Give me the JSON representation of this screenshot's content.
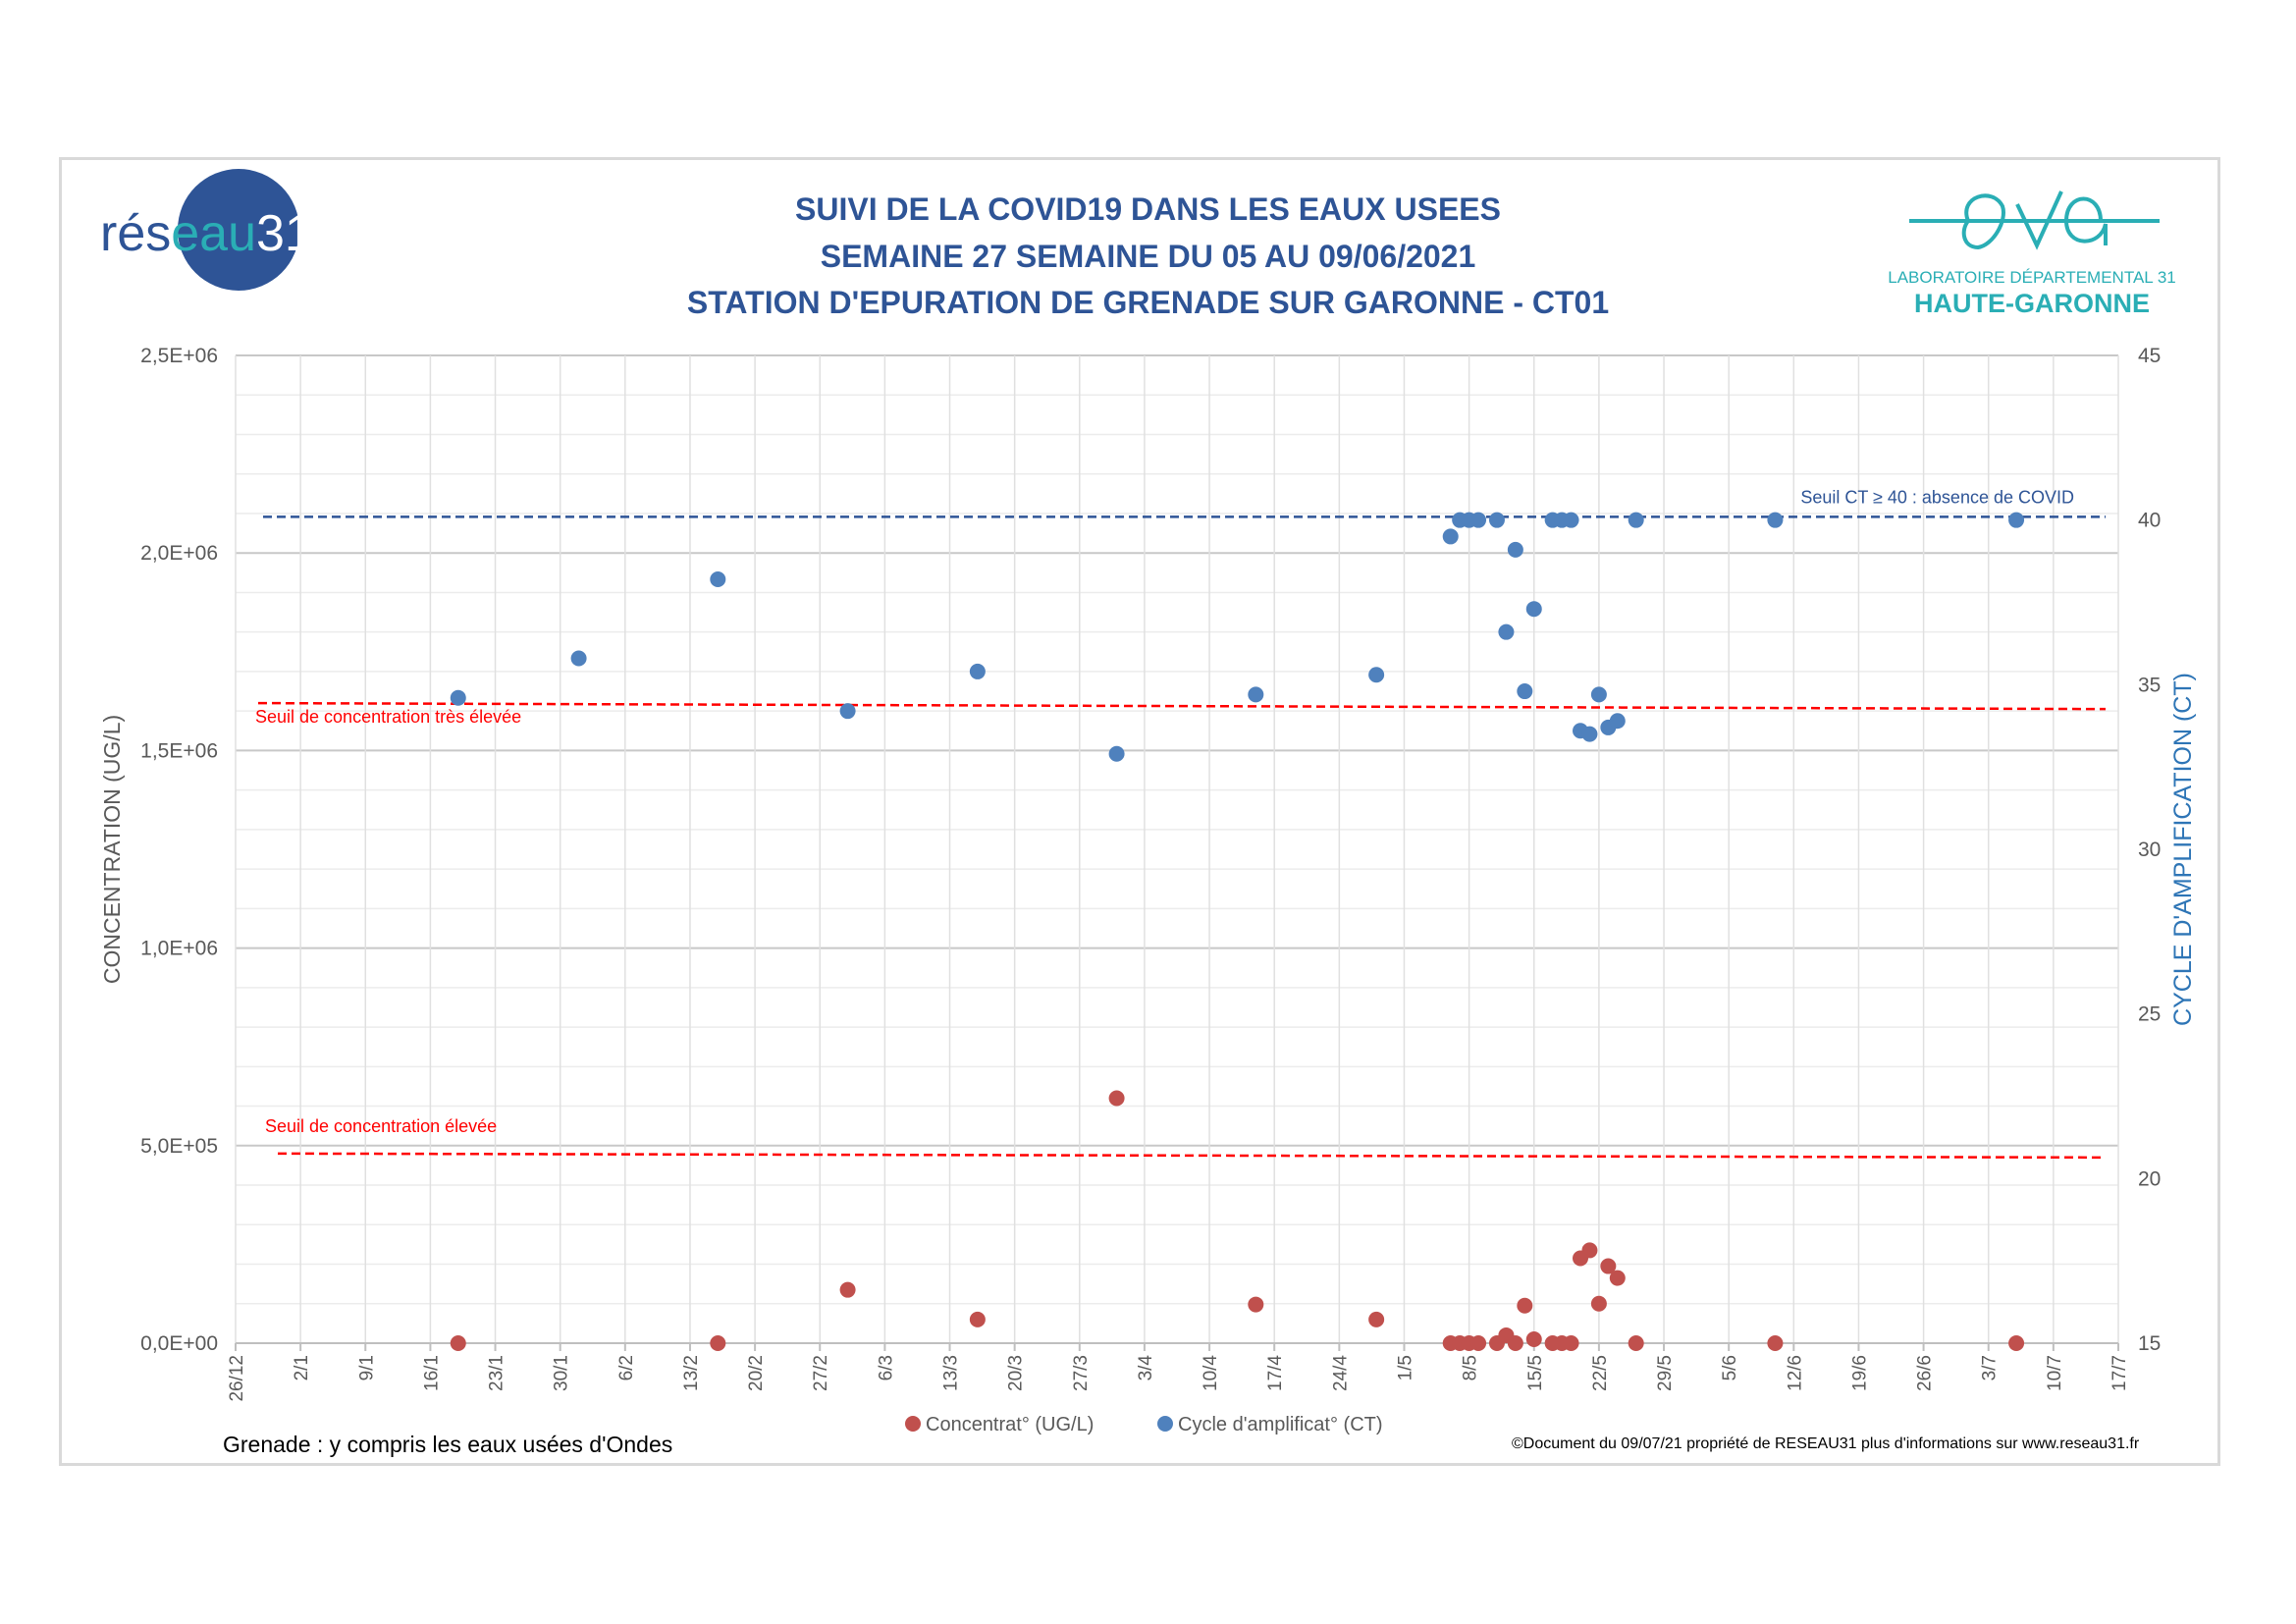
{
  "header": {
    "title_lines": [
      "SUIVI DE LA COVID19 DANS LES EAUX USEES",
      "SEMAINE 27 SEMAINE DU 05 AU 09/06/2021",
      "STATION D'EPURATION DE GRENADE SUR GARONNE - CT01"
    ],
    "logo_left": {
      "text_main": "rés",
      "text_accent": "eau",
      "text_number": "31"
    },
    "logo_right": {
      "line1": "LABORATOIRE DÉPARTEMENTAL 31",
      "line2": "HAUTE-GARONNE"
    }
  },
  "footer": {
    "note": "Grenade : y compris les eaux usées d'Ondes",
    "copyright": "©Document du 09/07/21 propriété de RESEAU31 plus d'informations sur www.reseau31.fr"
  },
  "colors": {
    "title": "#2e5496",
    "concentration": "#c0504d",
    "ct": "#4f81bd",
    "threshold_red": "#ff0000",
    "threshold_blue": "#2e5496",
    "grid": "#d9d9d9",
    "logo_dark": "#2e5496",
    "logo_teal": "#2aaeb5"
  },
  "chart_data": {
    "type": "scatter",
    "x_axis": {
      "min": "2020-12-26",
      "max": "2021-07-17",
      "tick_labels": [
        "26/12",
        "2/1",
        "9/1",
        "16/1",
        "23/1",
        "30/1",
        "6/2",
        "13/2",
        "20/2",
        "27/2",
        "6/3",
        "13/3",
        "20/3",
        "27/3",
        "3/4",
        "10/4",
        "17/4",
        "24/4",
        "1/5",
        "8/5",
        "15/5",
        "22/5",
        "29/5",
        "5/6",
        "12/6",
        "19/6",
        "26/6",
        "3/7",
        "10/7",
        "17/7"
      ]
    },
    "y_left": {
      "label": "CONCENTRATION (UG/L)",
      "min": 0,
      "max": 2500000,
      "tick_labels": [
        "0,0E+00",
        "5,0E+05",
        "1,0E+06",
        "1,5E+06",
        "2,0E+06",
        "2,5E+06"
      ]
    },
    "y_right": {
      "label": "CYCLE D'AMPLIFICATION (CT)",
      "min": 15,
      "max": 45,
      "tick_labels": [
        "15",
        "20",
        "25",
        "30",
        "35",
        "40",
        "45"
      ]
    },
    "grid": true,
    "legend_position": "bottom",
    "series": [
      {
        "name": "Concentrat° (UG/L)",
        "axis": "left",
        "points": [
          {
            "x": "2021-01-19",
            "y": 0
          },
          {
            "x": "2021-02-16",
            "y": 0
          },
          {
            "x": "2021-03-02",
            "y": 135000
          },
          {
            "x": "2021-03-16",
            "y": 60000
          },
          {
            "x": "2021-03-31",
            "y": 620000
          },
          {
            "x": "2021-04-15",
            "y": 98000
          },
          {
            "x": "2021-04-28",
            "y": 60000
          },
          {
            "x": "2021-05-06",
            "y": 0
          },
          {
            "x": "2021-05-07",
            "y": 0
          },
          {
            "x": "2021-05-08",
            "y": 0
          },
          {
            "x": "2021-05-09",
            "y": 0
          },
          {
            "x": "2021-05-11",
            "y": 0
          },
          {
            "x": "2021-05-12",
            "y": 20000
          },
          {
            "x": "2021-05-13",
            "y": 0
          },
          {
            "x": "2021-05-14",
            "y": 95000
          },
          {
            "x": "2021-05-15",
            "y": 10000
          },
          {
            "x": "2021-05-17",
            "y": 0
          },
          {
            "x": "2021-05-18",
            "y": 0
          },
          {
            "x": "2021-05-19",
            "y": 0
          },
          {
            "x": "2021-05-20",
            "y": 215000
          },
          {
            "x": "2021-05-21",
            "y": 235000
          },
          {
            "x": "2021-05-22",
            "y": 100000
          },
          {
            "x": "2021-05-23",
            "y": 195000
          },
          {
            "x": "2021-05-24",
            "y": 165000
          },
          {
            "x": "2021-05-26",
            "y": 0
          },
          {
            "x": "2021-06-10",
            "y": 0
          },
          {
            "x": "2021-07-06",
            "y": 0
          }
        ]
      },
      {
        "name": "Cycle d'amplificat° (CT)",
        "axis": "right",
        "points": [
          {
            "x": "2021-01-19",
            "y": 34.6
          },
          {
            "x": "2021-02-01",
            "y": 35.8
          },
          {
            "x": "2021-02-16",
            "y": 38.2
          },
          {
            "x": "2021-03-02",
            "y": 34.2
          },
          {
            "x": "2021-03-16",
            "y": 35.4
          },
          {
            "x": "2021-03-31",
            "y": 32.9
          },
          {
            "x": "2021-04-15",
            "y": 34.7
          },
          {
            "x": "2021-04-28",
            "y": 35.3
          },
          {
            "x": "2021-05-06",
            "y": 39.5
          },
          {
            "x": "2021-05-07",
            "y": 40
          },
          {
            "x": "2021-05-08",
            "y": 40
          },
          {
            "x": "2021-05-09",
            "y": 40
          },
          {
            "x": "2021-05-11",
            "y": 40
          },
          {
            "x": "2021-05-12",
            "y": 36.6
          },
          {
            "x": "2021-05-13",
            "y": 39.1
          },
          {
            "x": "2021-05-14",
            "y": 34.8
          },
          {
            "x": "2021-05-15",
            "y": 37.3
          },
          {
            "x": "2021-05-17",
            "y": 40
          },
          {
            "x": "2021-05-18",
            "y": 40
          },
          {
            "x": "2021-05-19",
            "y": 40
          },
          {
            "x": "2021-05-20",
            "y": 33.6
          },
          {
            "x": "2021-05-21",
            "y": 33.5
          },
          {
            "x": "2021-05-22",
            "y": 34.7
          },
          {
            "x": "2021-05-23",
            "y": 33.7
          },
          {
            "x": "2021-05-24",
            "y": 33.9
          },
          {
            "x": "2021-05-26",
            "y": 40
          },
          {
            "x": "2021-06-10",
            "y": 40
          },
          {
            "x": "2021-07-06",
            "y": 40
          }
        ]
      }
    ],
    "thresholds": [
      {
        "label": "Seuil de concentration très élevée",
        "axis": "left",
        "value_start": 1620000,
        "value_end": 1605000,
        "color": "red"
      },
      {
        "label": "Seuil de concentration élevée",
        "axis": "left",
        "value_start": 480000,
        "value_end": 470000,
        "color": "red"
      },
      {
        "label": "Seuil CT ≥ 40 : absence de COVID",
        "axis": "right",
        "value": 40.1,
        "color": "blue"
      }
    ]
  }
}
